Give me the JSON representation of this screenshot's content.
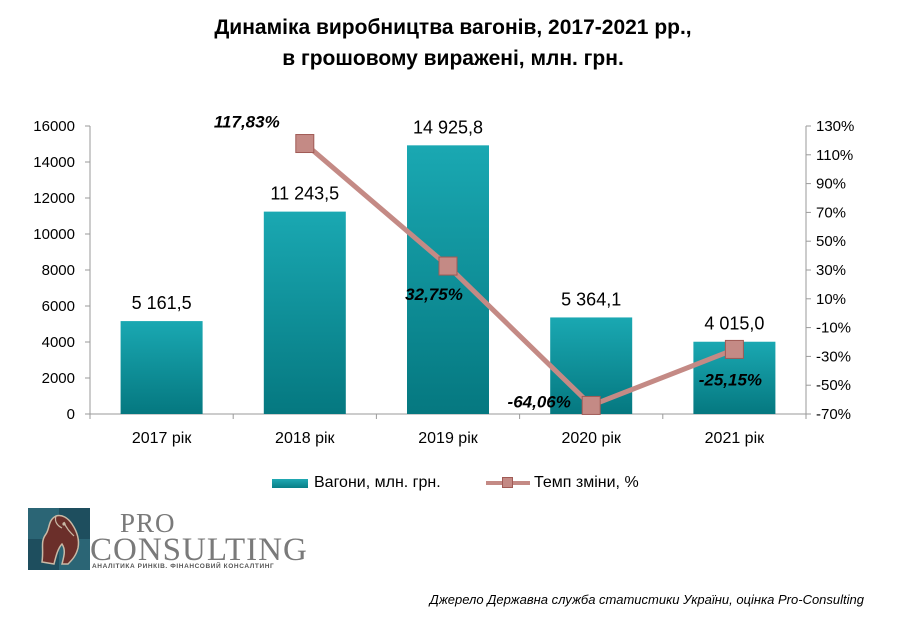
{
  "title_line1": "Динаміка виробництва вагонів, 2017-2021 рр.,",
  "title_line2": "в грошовому виражені, млн. грн.",
  "chart_data": {
    "type": "bar",
    "categories": [
      "2017 рік",
      "2018 рік",
      "2019 рік",
      "2020 рік",
      "2021 рік"
    ],
    "series": [
      {
        "name": "Вагони, млн. грн.",
        "type": "bar",
        "axis": "left",
        "values": [
          5161.5,
          11243.5,
          14925.8,
          5364.1,
          4015.0
        ],
        "labels": [
          "5 161,5",
          "11 243,5",
          "14 925,8",
          "5 364,1",
          "4 015,0"
        ],
        "color": "#0e959e"
      },
      {
        "name": "Темп зміни, %",
        "type": "line",
        "axis": "right",
        "values": [
          null,
          117.83,
          32.75,
          -64.06,
          -25.15
        ],
        "labels": [
          null,
          "117,83%",
          "32,75%",
          "-64,06%",
          "-25,15%"
        ],
        "color": "#c48a85"
      }
    ],
    "y_left": {
      "min": 0,
      "max": 16000,
      "ticks": [
        "0",
        "2000",
        "4000",
        "6000",
        "8000",
        "10000",
        "12000",
        "14000",
        "16000"
      ]
    },
    "y_right": {
      "min": -70,
      "max": 130,
      "ticks": [
        "-70%",
        "-50%",
        "-30%",
        "-10%",
        "10%",
        "30%",
        "50%",
        "70%",
        "90%",
        "110%",
        "130%"
      ]
    },
    "grid": false,
    "legend_position": "bottom"
  },
  "logo": {
    "pro": "PRO",
    "consulting": "CONSULTING",
    "tagline": "АНАЛІТИКА РИНКІВ. ФІНАНСОВИЙ КОНСАЛТИНГ"
  },
  "source": "Джерело Державна служба статистики України, оцінка Pro-Consulting"
}
